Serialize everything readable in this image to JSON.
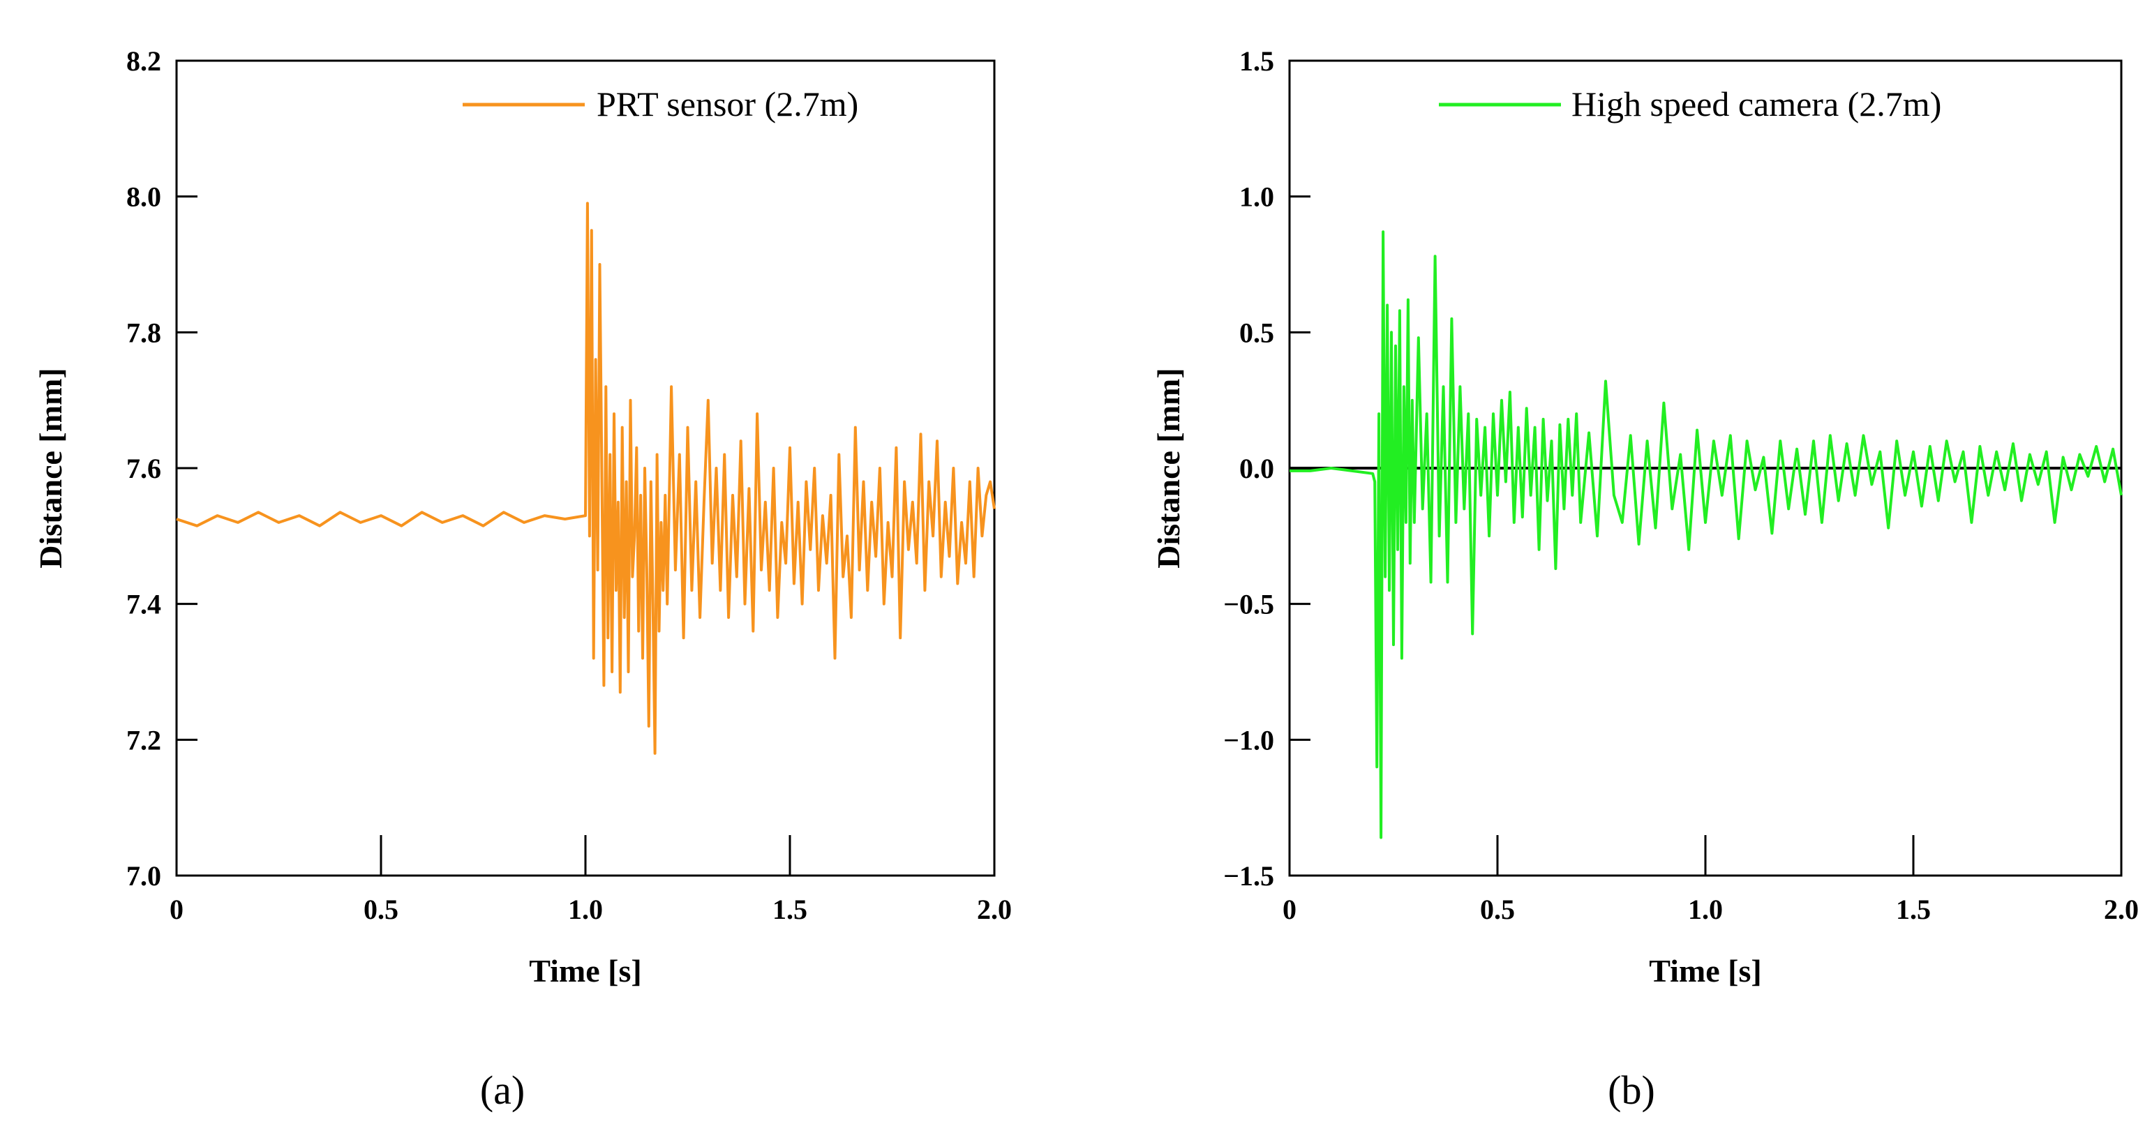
{
  "chart_data": [
    {
      "type": "line",
      "panel_label": "(a)",
      "xlabel": "Time [s]",
      "ylabel": "Distance [mm]",
      "xlim": [
        0,
        2.0
      ],
      "ylim": [
        7.0,
        8.2
      ],
      "xticks": [
        0,
        0.5,
        1.0,
        1.5,
        2.0
      ],
      "xtick_labels": [
        "0",
        "0.5",
        "1.0",
        "1.5",
        "2.0"
      ],
      "yticks": [
        7.0,
        7.2,
        7.4,
        7.6,
        7.8,
        8.0,
        8.2
      ],
      "ytick_labels": [
        "7.0",
        "7.2",
        "7.4",
        "7.6",
        "7.8",
        "8.0",
        "8.2"
      ],
      "legend_position": "top-right",
      "zero_line": false,
      "series": [
        {
          "name": "PRT sensor (2.7m)",
          "color": "#F7931E",
          "x": [
            0,
            0.05,
            0.1,
            0.15,
            0.2,
            0.25,
            0.3,
            0.35,
            0.4,
            0.45,
            0.5,
            0.55,
            0.6,
            0.65,
            0.7,
            0.75,
            0.8,
            0.85,
            0.9,
            0.95,
            1.0,
            1.005,
            1.01,
            1.015,
            1.02,
            1.025,
            1.03,
            1.035,
            1.04,
            1.045,
            1.05,
            1.055,
            1.06,
            1.065,
            1.07,
            1.075,
            1.08,
            1.085,
            1.09,
            1.095,
            1.1,
            1.105,
            1.11,
            1.115,
            1.12,
            1.125,
            1.13,
            1.135,
            1.14,
            1.145,
            1.15,
            1.155,
            1.16,
            1.165,
            1.17,
            1.175,
            1.18,
            1.185,
            1.19,
            1.195,
            1.2,
            1.21,
            1.22,
            1.23,
            1.24,
            1.25,
            1.26,
            1.27,
            1.28,
            1.29,
            1.3,
            1.31,
            1.32,
            1.33,
            1.34,
            1.35,
            1.36,
            1.37,
            1.38,
            1.39,
            1.4,
            1.41,
            1.42,
            1.43,
            1.44,
            1.45,
            1.46,
            1.47,
            1.48,
            1.49,
            1.5,
            1.51,
            1.52,
            1.53,
            1.54,
            1.55,
            1.56,
            1.57,
            1.58,
            1.59,
            1.6,
            1.61,
            1.62,
            1.63,
            1.64,
            1.65,
            1.66,
            1.67,
            1.68,
            1.69,
            1.7,
            1.71,
            1.72,
            1.73,
            1.74,
            1.75,
            1.76,
            1.77,
            1.78,
            1.79,
            1.8,
            1.81,
            1.82,
            1.83,
            1.84,
            1.85,
            1.86,
            1.87,
            1.88,
            1.89,
            1.9,
            1.91,
            1.92,
            1.93,
            1.94,
            1.95,
            1.96,
            1.97,
            1.98,
            1.99,
            2.0
          ],
          "y": [
            7.525,
            7.515,
            7.53,
            7.52,
            7.535,
            7.52,
            7.53,
            7.515,
            7.535,
            7.52,
            7.53,
            7.515,
            7.535,
            7.52,
            7.53,
            7.515,
            7.535,
            7.52,
            7.53,
            7.525,
            7.53,
            7.99,
            7.5,
            7.95,
            7.32,
            7.76,
            7.45,
            7.9,
            7.6,
            7.28,
            7.72,
            7.35,
            7.62,
            7.3,
            7.68,
            7.42,
            7.55,
            7.27,
            7.66,
            7.38,
            7.58,
            7.3,
            7.7,
            7.44,
            7.5,
            7.63,
            7.36,
            7.56,
            7.32,
            7.6,
            7.45,
            7.22,
            7.58,
            7.4,
            7.18,
            7.62,
            7.36,
            7.52,
            7.42,
            7.56,
            7.4,
            7.72,
            7.45,
            7.62,
            7.35,
            7.66,
            7.42,
            7.58,
            7.38,
            7.55,
            7.7,
            7.46,
            7.6,
            7.42,
            7.62,
            7.38,
            7.56,
            7.44,
            7.64,
            7.4,
            7.57,
            7.36,
            7.68,
            7.45,
            7.55,
            7.42,
            7.6,
            7.38,
            7.52,
            7.46,
            7.63,
            7.43,
            7.55,
            7.4,
            7.58,
            7.48,
            7.6,
            7.42,
            7.53,
            7.46,
            7.56,
            7.32,
            7.62,
            7.44,
            7.5,
            7.38,
            7.66,
            7.45,
            7.58,
            7.42,
            7.55,
            7.47,
            7.6,
            7.4,
            7.52,
            7.44,
            7.63,
            7.35,
            7.58,
            7.48,
            7.55,
            7.46,
            7.65,
            7.42,
            7.58,
            7.5,
            7.64,
            7.44,
            7.55,
            7.47,
            7.6,
            7.43,
            7.52,
            7.46,
            7.58,
            7.44,
            7.6,
            7.5,
            7.56,
            7.58,
            7.54
          ]
        }
      ]
    },
    {
      "type": "line",
      "panel_label": "(b)",
      "xlabel": "Time [s]",
      "ylabel": "Distance [mm]",
      "xlim": [
        0,
        2.0
      ],
      "ylim": [
        -1.5,
        1.5
      ],
      "xticks": [
        0,
        0.5,
        1.0,
        1.5,
        2.0
      ],
      "xtick_labels": [
        "0",
        "0.5",
        "1.0",
        "1.5",
        "2.0"
      ],
      "yticks": [
        -1.5,
        -1.0,
        -0.5,
        0.0,
        0.5,
        1.0,
        1.5
      ],
      "ytick_labels": [
        "−1.5",
        "−1.0",
        "−0.5",
        "0.0",
        "0.5",
        "1.0",
        "1.5"
      ],
      "legend_position": "top-right",
      "zero_line": true,
      "series": [
        {
          "name": "High speed camera (2.7m)",
          "color": "#22EE22",
          "x": [
            0,
            0.05,
            0.1,
            0.15,
            0.2,
            0.205,
            0.21,
            0.215,
            0.22,
            0.225,
            0.23,
            0.235,
            0.24,
            0.245,
            0.25,
            0.255,
            0.26,
            0.265,
            0.27,
            0.275,
            0.28,
            0.285,
            0.29,
            0.295,
            0.3,
            0.31,
            0.32,
            0.33,
            0.34,
            0.35,
            0.36,
            0.37,
            0.38,
            0.39,
            0.4,
            0.41,
            0.42,
            0.43,
            0.44,
            0.45,
            0.46,
            0.47,
            0.48,
            0.49,
            0.5,
            0.51,
            0.52,
            0.53,
            0.54,
            0.55,
            0.56,
            0.57,
            0.58,
            0.59,
            0.6,
            0.61,
            0.62,
            0.63,
            0.64,
            0.65,
            0.66,
            0.67,
            0.68,
            0.69,
            0.7,
            0.72,
            0.74,
            0.76,
            0.78,
            0.8,
            0.82,
            0.84,
            0.86,
            0.88,
            0.9,
            0.92,
            0.94,
            0.96,
            0.98,
            1.0,
            1.02,
            1.04,
            1.06,
            1.08,
            1.1,
            1.12,
            1.14,
            1.16,
            1.18,
            1.2,
            1.22,
            1.24,
            1.26,
            1.28,
            1.3,
            1.32,
            1.34,
            1.36,
            1.38,
            1.4,
            1.42,
            1.44,
            1.46,
            1.48,
            1.5,
            1.52,
            1.54,
            1.56,
            1.58,
            1.6,
            1.62,
            1.64,
            1.66,
            1.68,
            1.7,
            1.72,
            1.74,
            1.76,
            1.78,
            1.8,
            1.82,
            1.84,
            1.86,
            1.88,
            1.9,
            1.92,
            1.94,
            1.96,
            1.98,
            2.0
          ],
          "y": [
            -0.01,
            -0.01,
            0.0,
            -0.01,
            -0.02,
            -0.05,
            -1.1,
            0.2,
            -1.36,
            0.87,
            -0.4,
            0.6,
            -0.45,
            0.5,
            -0.65,
            0.45,
            -0.3,
            0.58,
            -0.7,
            0.3,
            -0.2,
            0.62,
            -0.35,
            0.25,
            -0.2,
            0.48,
            -0.15,
            0.2,
            -0.42,
            0.78,
            -0.25,
            0.3,
            -0.42,
            0.55,
            -0.2,
            0.3,
            -0.15,
            0.2,
            -0.61,
            0.18,
            -0.1,
            0.15,
            -0.25,
            0.2,
            -0.1,
            0.25,
            -0.05,
            0.28,
            -0.2,
            0.15,
            -0.18,
            0.22,
            -0.1,
            0.15,
            -0.3,
            0.18,
            -0.12,
            0.1,
            -0.37,
            0.16,
            -0.15,
            0.18,
            -0.1,
            0.2,
            -0.2,
            0.13,
            -0.25,
            0.32,
            -0.1,
            -0.2,
            0.12,
            -0.28,
            0.1,
            -0.22,
            0.24,
            -0.15,
            0.05,
            -0.3,
            0.14,
            -0.2,
            0.1,
            -0.1,
            0.12,
            -0.26,
            0.1,
            -0.08,
            0.04,
            -0.24,
            0.1,
            -0.15,
            0.07,
            -0.17,
            0.1,
            -0.2,
            0.12,
            -0.12,
            0.09,
            -0.1,
            0.12,
            -0.06,
            0.06,
            -0.22,
            0.1,
            -0.1,
            0.06,
            -0.14,
            0.08,
            -0.12,
            0.1,
            -0.05,
            0.06,
            -0.2,
            0.08,
            -0.1,
            0.06,
            -0.08,
            0.09,
            -0.12,
            0.05,
            -0.06,
            0.06,
            -0.2,
            0.04,
            -0.08,
            0.05,
            -0.03,
            0.08,
            -0.05,
            0.07,
            -0.1
          ]
        }
      ]
    }
  ]
}
